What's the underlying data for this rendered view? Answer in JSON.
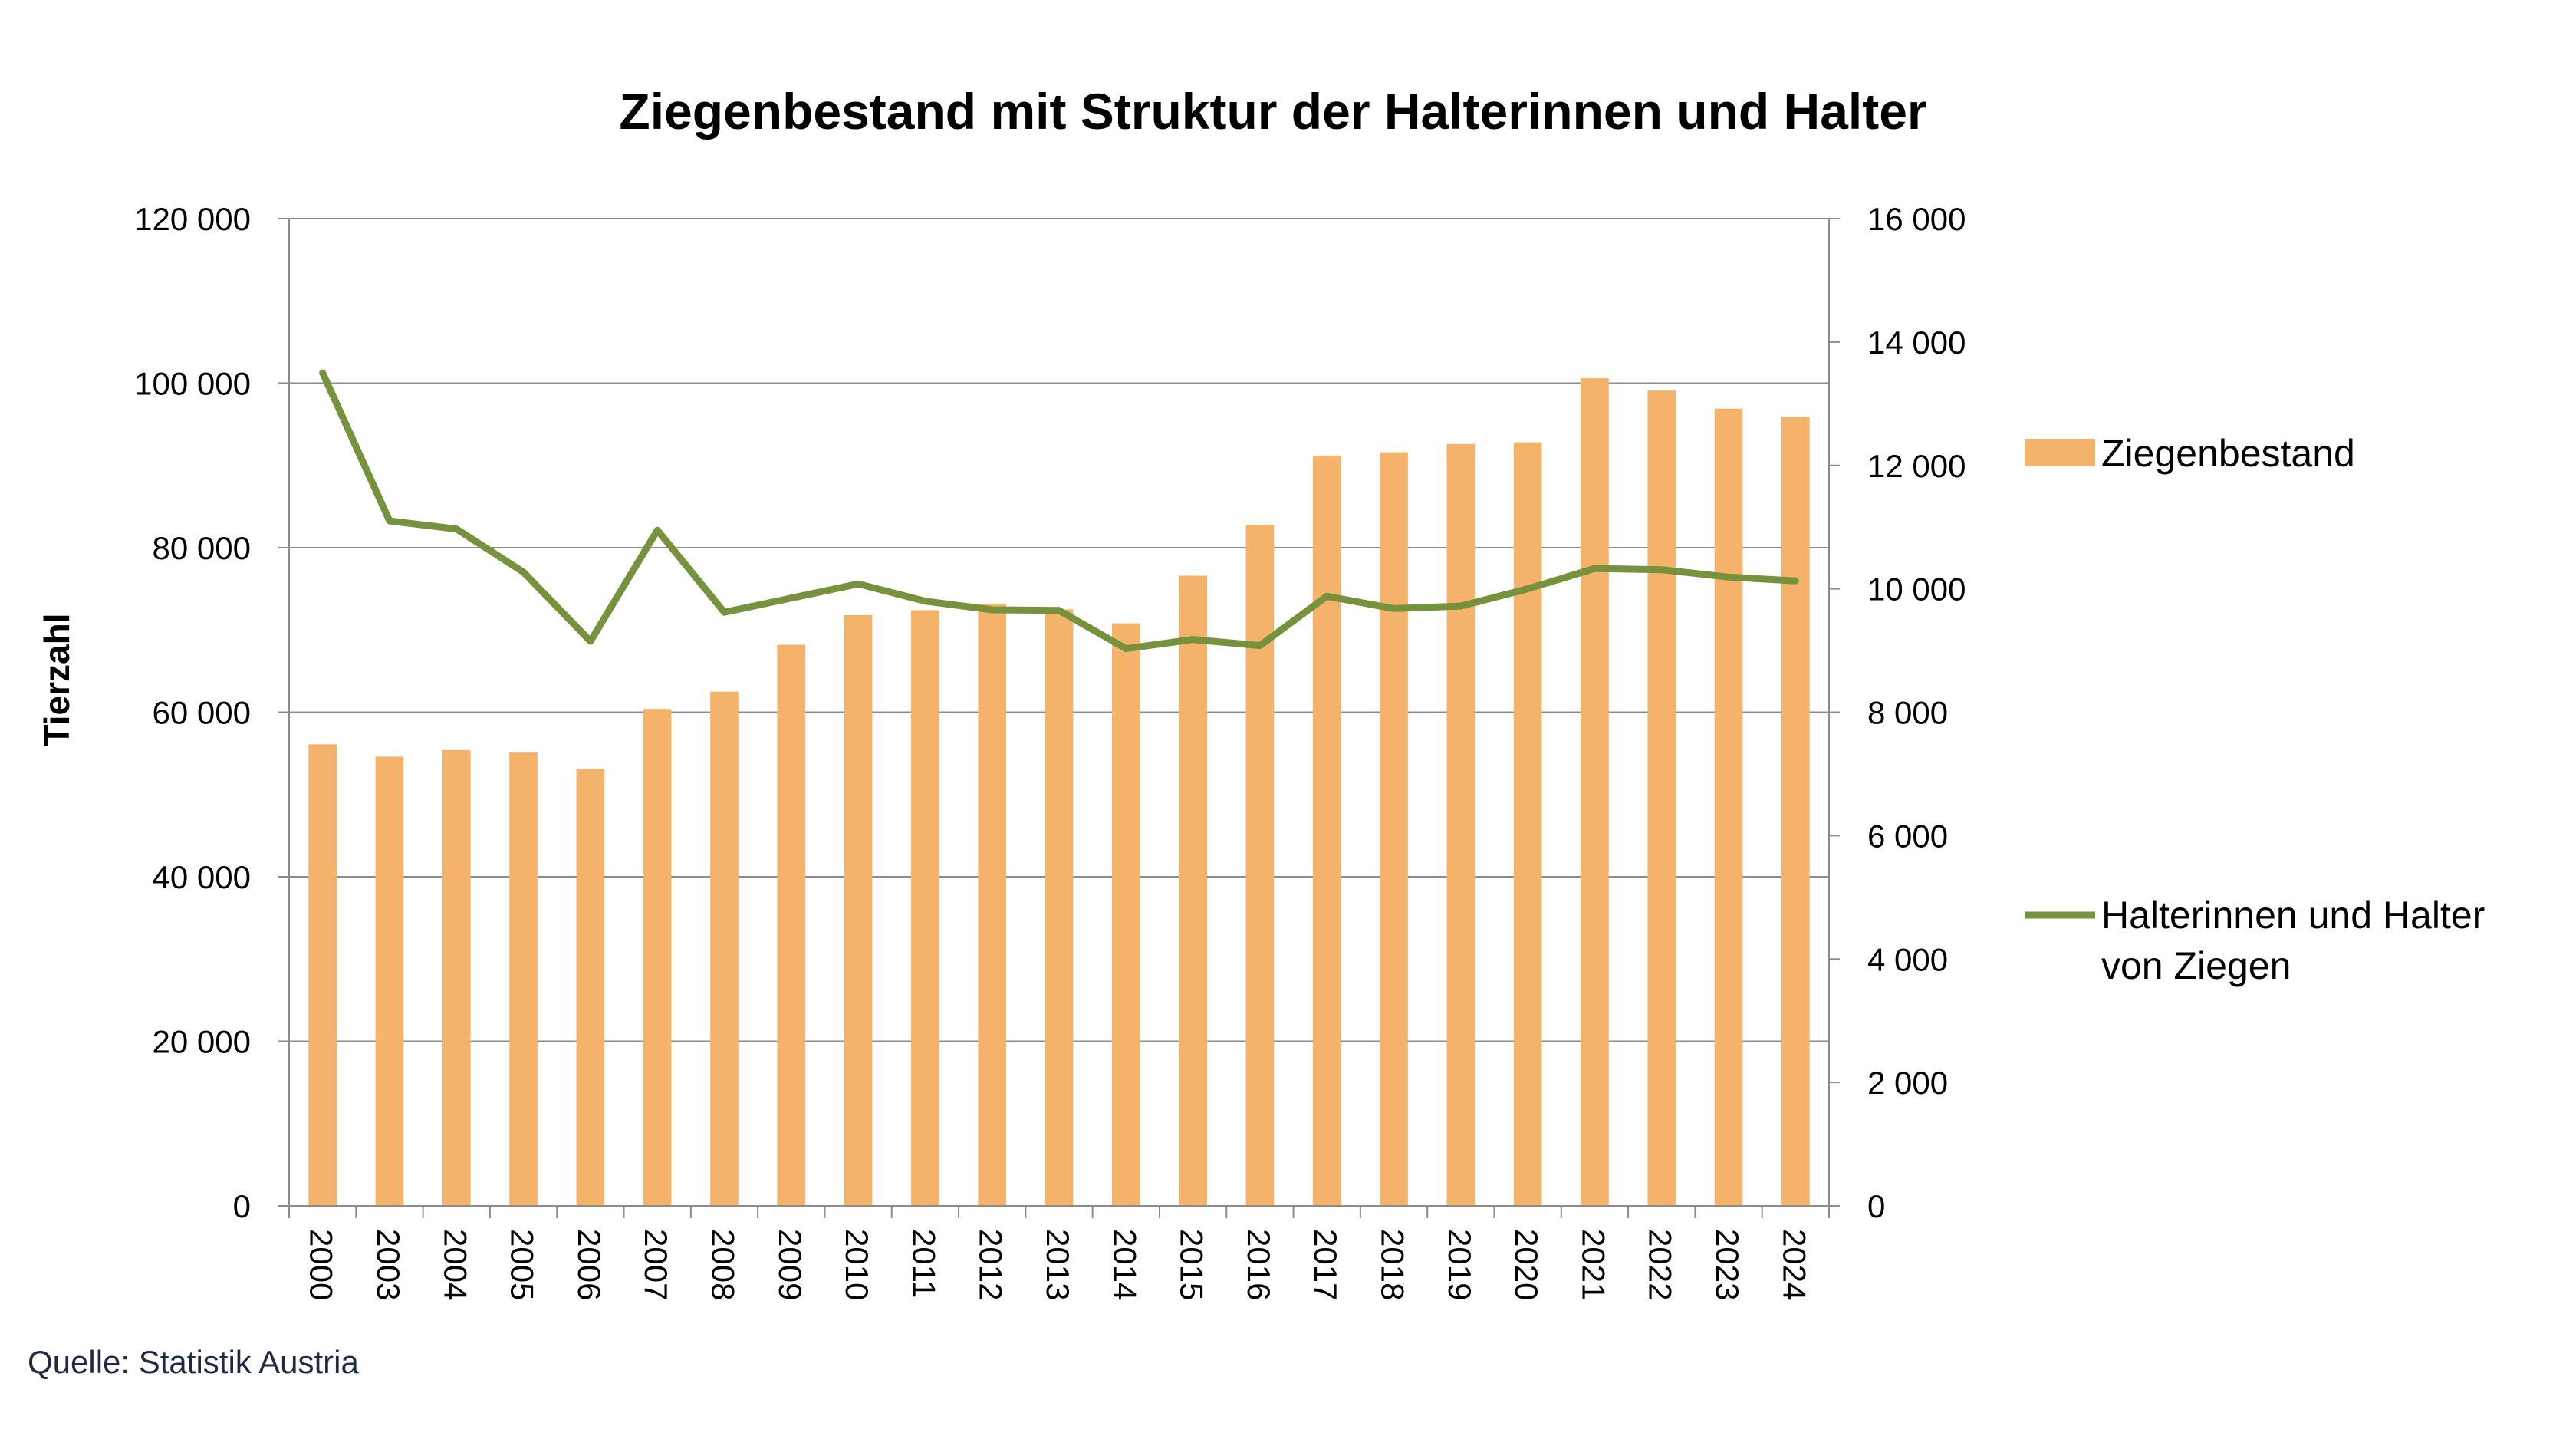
{
  "chart_data": {
    "type": "bar",
    "title": "Ziegenbestand mit Struktur der Halterinnen und Halter",
    "ylabel": "Tierzahl",
    "ylabel_right": "",
    "xlabel": "",
    "source": "Quelle: Statistik Austria",
    "categories": [
      "2000",
      "2003",
      "2004",
      "2005",
      "2006",
      "2007",
      "2008",
      "2009",
      "2010",
      "2011",
      "2012",
      "2013",
      "2014",
      "2015",
      "2016",
      "2017",
      "2018",
      "2019",
      "2020",
      "2021",
      "2022",
      "2023",
      "2024"
    ],
    "ylim": [
      0,
      120000
    ],
    "ylim_right": [
      0,
      16000
    ],
    "y_ticks": [
      "0",
      "20 000",
      "40 000",
      "60 000",
      "80 000",
      "100 000",
      "120 000"
    ],
    "y_ticks_right": [
      "0",
      "2 000",
      "4 000",
      "6 000",
      "8 000",
      "10 000",
      "12 000",
      "14 000",
      "16 000"
    ],
    "grid": true,
    "legend_position": "right",
    "series": [
      {
        "name": "Ziegenbestand",
        "type": "bar",
        "axis": "left",
        "color": "#F5B26B",
        "values": [
          56100,
          54600,
          55400,
          55100,
          53100,
          60400,
          62500,
          68200,
          71800,
          72400,
          73200,
          72500,
          70800,
          76600,
          82800,
          91200,
          91600,
          92600,
          92800,
          100600,
          99100,
          96900,
          95900
        ]
      },
      {
        "name": "Halterinnen und Halter von Ziegen",
        "legend_lines": [
          "Halterinnen und Halter",
          "von Ziegen"
        ],
        "type": "line",
        "axis": "right",
        "color": "#76923C",
        "values": [
          13500,
          11100,
          10970,
          10270,
          9150,
          10950,
          9620,
          9850,
          10080,
          9800,
          9660,
          9650,
          9030,
          9180,
          9080,
          9880,
          9680,
          9720,
          10000,
          10330,
          10310,
          10190,
          10130
        ]
      }
    ]
  }
}
